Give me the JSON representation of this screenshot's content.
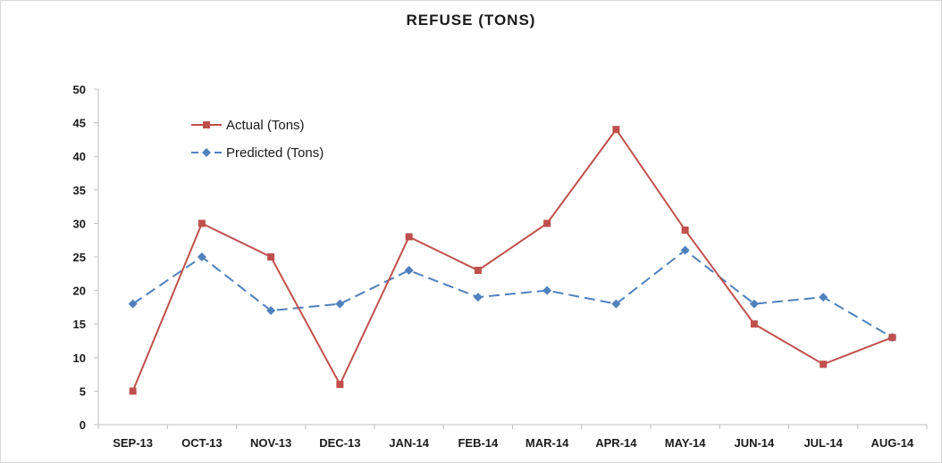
{
  "chart_data": {
    "type": "line",
    "title": "REFUSE (TONS)",
    "xlabel": "",
    "ylabel": "",
    "categories": [
      "SEP-13",
      "OCT-13",
      "NOV-13",
      "DEC-13",
      "JAN-14",
      "FEB-14",
      "MAR-14",
      "APR-14",
      "MAY-14",
      "JUN-14",
      "JUL-14",
      "AUG-14"
    ],
    "ylim": [
      0,
      50
    ],
    "yticks": [
      0,
      5,
      10,
      15,
      20,
      25,
      30,
      35,
      40,
      45,
      50
    ],
    "grid": false,
    "legend_position": "top-left",
    "series": [
      {
        "name": "Actual (Tons)",
        "values": [
          5,
          30,
          25,
          6,
          28,
          23,
          30,
          44,
          29,
          15,
          9,
          13
        ],
        "color": "#c0504d",
        "marker": "square",
        "line_style": "solid"
      },
      {
        "name": "Predicted (Tons)",
        "values": [
          18,
          25,
          17,
          18,
          23,
          19,
          20,
          18,
          26,
          18,
          19,
          13
        ],
        "color": "#4f81bd",
        "marker": "diamond",
        "line_style": "dashed"
      }
    ]
  }
}
